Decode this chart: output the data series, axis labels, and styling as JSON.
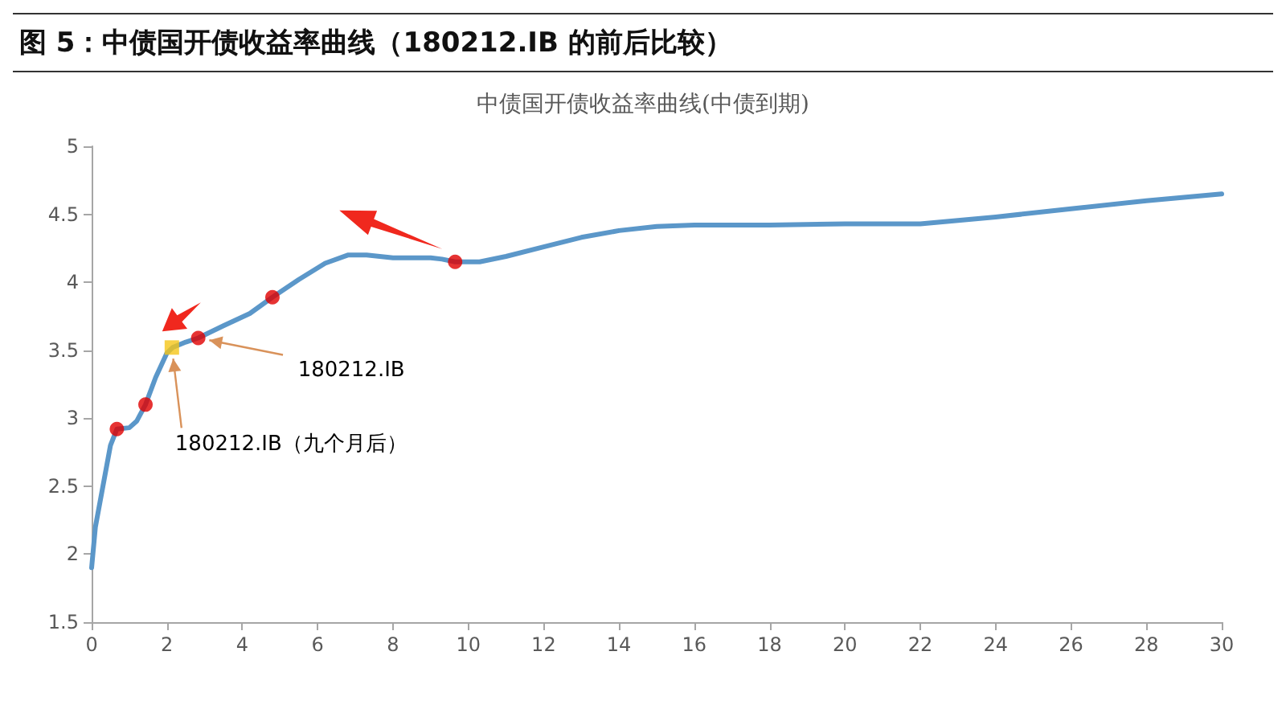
{
  "chart_data": {
    "type": "line",
    "title": "图 5：中债国开债收益率曲线（180212.IB 的前后比较）",
    "subtitle": "中债国开债收益率曲线(中债到期)",
    "xlim": [
      0,
      30
    ],
    "xticks": [
      0,
      2,
      4,
      6,
      8,
      10,
      12,
      14,
      16,
      18,
      20,
      22,
      24,
      26,
      28,
      30
    ],
    "ylim": [
      1.5,
      5
    ],
    "yticks": [
      1.5,
      2,
      2.5,
      3,
      3.5,
      4,
      4.5,
      5
    ],
    "series": [
      {
        "color": "#5b97c9",
        "marker": "none",
        "x": [
          0,
          0.1,
          0.3,
          0.5,
          0.67,
          1,
          1.2,
          1.43,
          1.7,
          2,
          2.15,
          2.5,
          2.83,
          3.5,
          4.2,
          4.8,
          5.5,
          6.2,
          6.8,
          7.3,
          8,
          9,
          9.3,
          9.65,
          10.3,
          11,
          12,
          13,
          14,
          15,
          16,
          18,
          20,
          22,
          24,
          26,
          28,
          30
        ],
        "values": [
          1.9,
          2.2,
          2.5,
          2.8,
          2.92,
          2.93,
          2.98,
          3.1,
          3.3,
          3.48,
          3.52,
          3.56,
          3.59,
          3.68,
          3.77,
          3.89,
          4.02,
          4.14,
          4.2,
          4.2,
          4.18,
          4.18,
          4.17,
          4.15,
          4.15,
          4.19,
          4.26,
          4.33,
          4.38,
          4.41,
          4.42,
          4.42,
          4.43,
          4.43,
          4.48,
          4.54,
          4.6,
          4.65
        ]
      },
      {
        "type": "scatter",
        "color": "#e00000",
        "marker": "circle",
        "x": [
          0.67,
          1.43,
          2.83,
          4.8,
          9.65
        ],
        "values": [
          2.92,
          3.1,
          3.59,
          3.89,
          4.15
        ]
      },
      {
        "type": "scatter",
        "color": "#f5c518",
        "marker": "square",
        "x": [
          2.13
        ],
        "values": [
          3.52
        ]
      }
    ],
    "annotations": [
      {
        "text": "180212.IB",
        "x": 2.83,
        "y": 3.59
      },
      {
        "text": "180212.IB（九个月后）",
        "x": 2.13,
        "y": 3.52
      }
    ]
  }
}
